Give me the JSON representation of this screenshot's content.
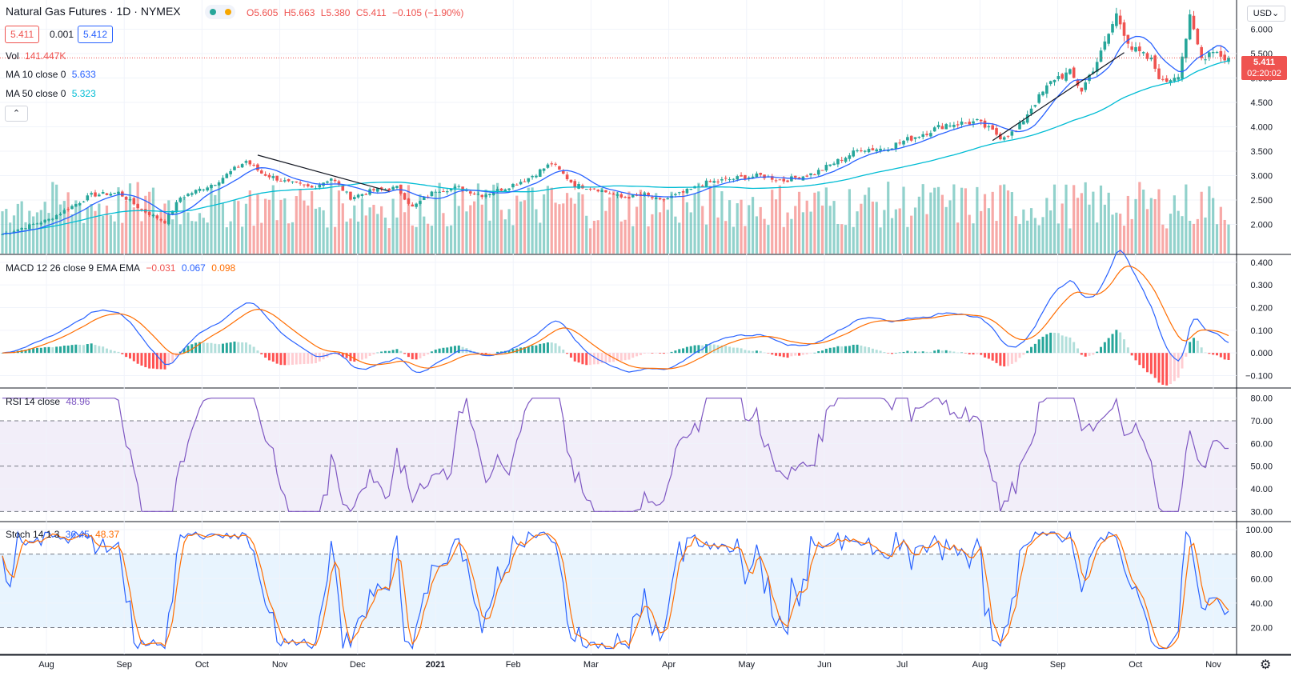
{
  "header": {
    "symbol": "Natural Gas Futures · 1D · NYMEX",
    "ohlc_o": "O5.605",
    "ohlc_h": "H5.663",
    "ohlc_l": "L5.380",
    "ohlc_c": "C5.411",
    "change": "−0.105 (−1.90%)",
    "bid": "5.411",
    "spread": "0.001",
    "ask": "5.412",
    "currency": "USD"
  },
  "indicators": {
    "vol_label": "Vol",
    "vol_value": "141.447K",
    "ma10_label": "MA 10 close 0",
    "ma10_value": "5.633",
    "ma50_label": "MA 50 close 0",
    "ma50_value": "5.323",
    "macd_label": "MACD 12 26 close 9 EMA EMA",
    "macd_hist": "−0.031",
    "macd_line": "0.067",
    "macd_signal": "0.098",
    "rsi_label": "RSI 14 close",
    "rsi_value": "48.96",
    "stoch_label": "Stoch 14 1 3",
    "stoch_k": "36.45",
    "stoch_d": "48.37"
  },
  "price_badge": {
    "price": "5.411",
    "countdown": "02:20:02"
  },
  "colors": {
    "up": "#26a69a",
    "down": "#ef5350",
    "ma10": "#2962ff",
    "ma50": "#00bcd4",
    "macd": "#2962ff",
    "signal": "#ff6d00",
    "rsi": "#7e57c2",
    "stoch_k": "#2962ff",
    "stoch_d": "#ff6d00"
  },
  "chart_data": {
    "type": "candlestick",
    "title": "Natural Gas Futures · 1D · NYMEX",
    "x_labels": [
      "Aug",
      "Sep",
      "Oct",
      "Nov",
      "Dec",
      "2021",
      "Feb",
      "Mar",
      "Apr",
      "May",
      "Jun",
      "Jul",
      "Aug",
      "Sep",
      "Oct",
      "Nov"
    ],
    "price_axis": {
      "ticks": [
        "6.000",
        "5.500",
        "5.000",
        "4.500",
        "4.000",
        "3.500",
        "3.000",
        "2.500",
        "2.000"
      ],
      "ylim": [
        1.5,
        6.5
      ]
    },
    "macd_axis": {
      "ticks": [
        "0.400",
        "0.300",
        "0.200",
        "0.100",
        "0.000",
        "−0.100"
      ],
      "ylim": [
        -0.13,
        0.41
      ]
    },
    "rsi_axis": {
      "ticks": [
        "80.00",
        "70.00",
        "60.00",
        "50.00",
        "40.00",
        "30.00"
      ],
      "ylim": [
        28,
        82
      ],
      "band": [
        30,
        70
      ]
    },
    "stoch_axis": {
      "ticks": [
        "100.00",
        "80.00",
        "60.00",
        "40.00",
        "20.00"
      ],
      "ylim": [
        2,
        102
      ],
      "band": [
        20,
        80
      ]
    },
    "close_anchors": [
      [
        0,
        1.8
      ],
      [
        12,
        2.1
      ],
      [
        23,
        2.6
      ],
      [
        30,
        2.65
      ],
      [
        36,
        2.3
      ],
      [
        42,
        2.05
      ],
      [
        46,
        2.55
      ],
      [
        55,
        2.85
      ],
      [
        63,
        3.3
      ],
      [
        67,
        3.05
      ],
      [
        74,
        2.85
      ],
      [
        80,
        2.75
      ],
      [
        85,
        2.95
      ],
      [
        90,
        2.55
      ],
      [
        96,
        2.7
      ],
      [
        102,
        2.75
      ],
      [
        106,
        2.35
      ],
      [
        112,
        2.7
      ],
      [
        118,
        2.75
      ],
      [
        124,
        2.6
      ],
      [
        130,
        2.75
      ],
      [
        136,
        2.95
      ],
      [
        142,
        3.25
      ],
      [
        148,
        2.8
      ],
      [
        153,
        2.75
      ],
      [
        160,
        2.55
      ],
      [
        166,
        2.6
      ],
      [
        170,
        2.48
      ],
      [
        176,
        2.65
      ],
      [
        182,
        2.85
      ],
      [
        190,
        2.95
      ],
      [
        196,
        3.0
      ],
      [
        202,
        2.9
      ],
      [
        210,
        3.05
      ],
      [
        216,
        3.3
      ],
      [
        222,
        3.55
      ],
      [
        228,
        3.55
      ],
      [
        236,
        3.8
      ],
      [
        244,
        4.05
      ],
      [
        252,
        4.1
      ],
      [
        258,
        3.8
      ],
      [
        262,
        3.9
      ],
      [
        266,
        4.4
      ],
      [
        272,
        5.0
      ],
      [
        276,
        5.1
      ],
      [
        279,
        4.75
      ],
      [
        284,
        5.5
      ],
      [
        288,
        6.3
      ],
      [
        292,
        5.6
      ],
      [
        297,
        5.35
      ],
      [
        300,
        4.9
      ],
      [
        304,
        5.1
      ],
      [
        307,
        6.2
      ],
      [
        310,
        5.4
      ],
      [
        313,
        5.6
      ],
      [
        316,
        5.41
      ]
    ],
    "trendlines": [
      {
        "from_bar": 66,
        "from_price": 3.42,
        "to_bar": 100,
        "to_price": 2.68
      },
      {
        "from_bar": 256,
        "from_price": 3.72,
        "to_bar": 290,
        "to_price": 5.52
      }
    ],
    "last": {
      "close": 5.411,
      "ma10": 5.633,
      "ma50": 5.323,
      "macd": 0.067,
      "signal": 0.098,
      "hist": -0.031,
      "rsi": 48.96,
      "stoch_k": 36.45,
      "stoch_d": 48.37,
      "volume": "141.447K"
    }
  }
}
